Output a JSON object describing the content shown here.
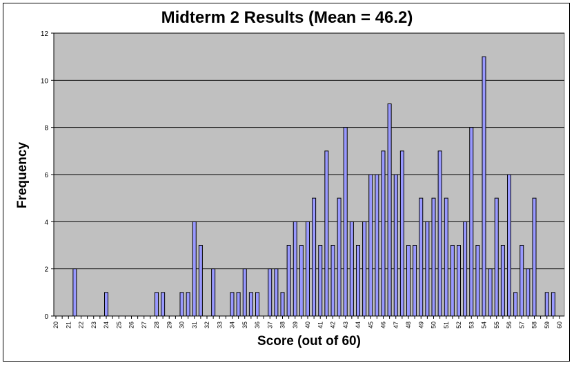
{
  "chart_data": {
    "type": "bar",
    "title": "Midterm 2 Results (Mean = 46.2)",
    "xlabel": "Score (out of 60)",
    "ylabel": "Frequency",
    "xlim": [
      20,
      60
    ],
    "ylim": [
      0,
      12
    ],
    "yticks": [
      0,
      2,
      4,
      6,
      8,
      10,
      12
    ],
    "xticks": [
      20,
      21,
      22,
      23,
      24,
      25,
      26,
      27,
      28,
      29,
      30,
      31,
      32,
      33,
      34,
      35,
      36,
      37,
      38,
      39,
      40,
      41,
      42,
      43,
      44,
      45,
      46,
      47,
      48,
      49,
      50,
      51,
      52,
      53,
      54,
      55,
      56,
      57,
      58,
      59,
      60
    ],
    "grid": "horizontal",
    "bar_color": "#9999FF",
    "plot_background": "#C0C0C0",
    "x": [
      21.5,
      24,
      28,
      28.5,
      30,
      30.5,
      31,
      31.5,
      32.5,
      34,
      34.5,
      35,
      35.5,
      36,
      37,
      37.5,
      38,
      38.5,
      39,
      39.5,
      40,
      40.5,
      41,
      41.5,
      42,
      42.5,
      43,
      43.5,
      44,
      44.5,
      45,
      45.5,
      46,
      46.5,
      47,
      47.5,
      48,
      48.5,
      49,
      49.5,
      50,
      50.5,
      51,
      51.5,
      52,
      52.5,
      53,
      53.5,
      54,
      54.5,
      55,
      55.5,
      56,
      56.5,
      57,
      57.5,
      58,
      59,
      59.5
    ],
    "values": [
      2,
      1,
      1,
      1,
      1,
      1,
      4,
      3,
      2,
      1,
      1,
      2,
      1,
      1,
      2,
      2,
      1,
      3,
      4,
      3,
      4,
      5,
      3,
      7,
      3,
      5,
      8,
      4,
      3,
      4,
      6,
      6,
      7,
      9,
      6,
      7,
      3,
      3,
      5,
      4,
      5,
      7,
      5,
      3,
      3,
      4,
      8,
      3,
      11,
      2,
      5,
      3,
      6,
      1,
      3,
      2,
      5,
      1,
      1
    ]
  }
}
